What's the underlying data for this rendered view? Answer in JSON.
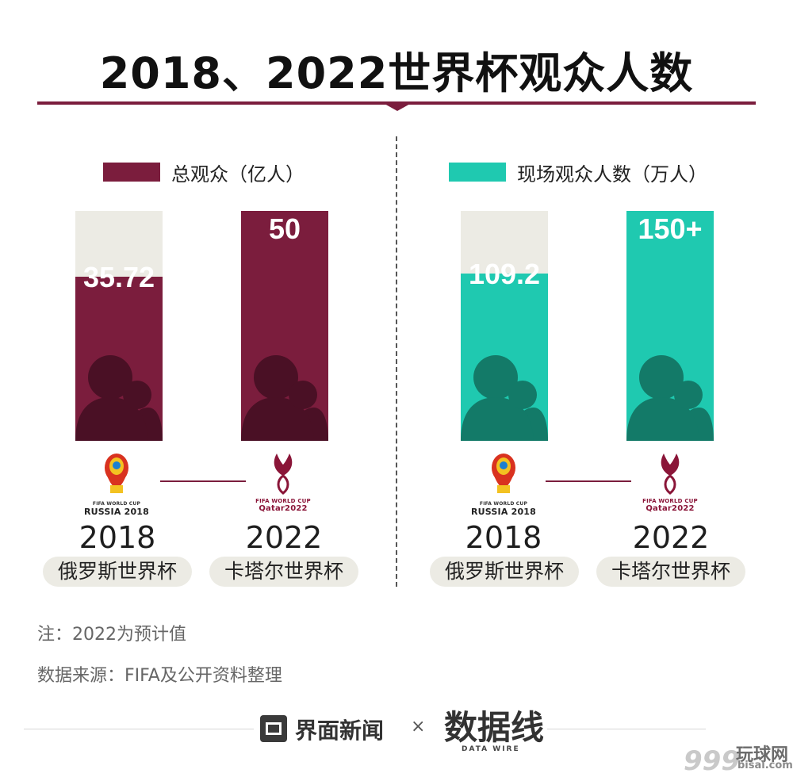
{
  "title": "2018、2022世界杯观众人数",
  "legend": {
    "left": {
      "label": "总观众（亿人）",
      "color": "#7b1d3d"
    },
    "right": {
      "label": "现场观众人数（万人）",
      "color": "#1fc9b0"
    }
  },
  "colors": {
    "maroon": "#7b1d3d",
    "teal": "#1fc9b0",
    "bar_bg": "#ecebe4",
    "silhouette_dark": "#4a1025",
    "silhouette_teal": "#137a68"
  },
  "chart_data": [
    {
      "type": "bar",
      "categories": [
        "2018",
        "2022"
      ],
      "series": [
        {
          "name": "总观众（亿人）",
          "values": [
            35.72,
            50
          ]
        }
      ],
      "value_labels": [
        "35.72",
        "50"
      ],
      "ylim": [
        0,
        50
      ]
    },
    {
      "type": "bar",
      "categories": [
        "2018",
        "2022"
      ],
      "series": [
        {
          "name": "现场观众人数（万人）",
          "values": [
            109.2,
            150
          ]
        }
      ],
      "value_labels": [
        "109.2",
        "150+"
      ],
      "ylim": [
        0,
        150
      ]
    }
  ],
  "groups": [
    {
      "items": [
        {
          "year": "2018",
          "event": "俄罗斯世界杯",
          "logo_text": "RUSSIA 2018",
          "logo_sub": "FIFA WORLD CUP"
        },
        {
          "year": "2022",
          "event": "卡塔尔世界杯",
          "logo_text": "Qatar2022",
          "logo_sub": "FIFA WORLD CUP"
        }
      ]
    },
    {
      "items": [
        {
          "year": "2018",
          "event": "俄罗斯世界杯",
          "logo_text": "RUSSIA 2018",
          "logo_sub": "FIFA WORLD CUP"
        },
        {
          "year": "2022",
          "event": "卡塔尔世界杯",
          "logo_text": "Qatar2022",
          "logo_sub": "FIFA WORLD CUP"
        }
      ]
    }
  ],
  "notes": {
    "note": "注：2022为预计值",
    "source": "数据来源：FIFA及公开资料整理"
  },
  "footer": {
    "brand": "界面新闻",
    "times": "×",
    "datawire": "数据线",
    "datawire_sub": "DATA WIRE",
    "corner": "玩球网",
    "corner_sub": "bisai.com",
    "corner_num": "999"
  }
}
